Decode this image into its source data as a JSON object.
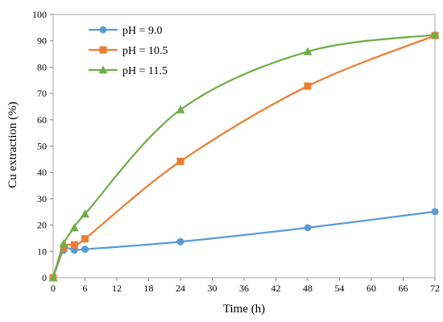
{
  "chart_data": {
    "type": "line",
    "xlabel": "Time (h)",
    "ylabel": "Cu extraction (%)",
    "xlim": [
      0,
      72
    ],
    "ylim": [
      0,
      100
    ],
    "xticks": [
      0,
      6,
      12,
      18,
      24,
      30,
      36,
      42,
      48,
      54,
      60,
      66,
      72
    ],
    "yticks": [
      0,
      10,
      20,
      30,
      40,
      50,
      60,
      70,
      80,
      90,
      100
    ],
    "grid": false,
    "legend_position": "top-left",
    "series": [
      {
        "name": "pH = 9.0",
        "color": "#5B9BD5",
        "marker": "circle",
        "x": [
          0,
          2,
          4,
          6,
          24,
          48,
          72
        ],
        "y": [
          0,
          10.5,
          10.5,
          10.8,
          13.7,
          19.0,
          25.1
        ]
      },
      {
        "name": "pH = 10.5",
        "color": "#ED7D31",
        "marker": "square",
        "x": [
          0,
          2,
          4,
          6,
          24,
          48,
          72
        ],
        "y": [
          0,
          11.5,
          12.5,
          14.8,
          44.2,
          72.8,
          92.0
        ]
      },
      {
        "name": "pH = 11.5",
        "color": "#70AD47",
        "marker": "triangle",
        "x": [
          0,
          2,
          4,
          6,
          24,
          48,
          72
        ],
        "y": [
          0,
          13.0,
          19.0,
          24.2,
          63.8,
          85.9,
          92.3
        ]
      }
    ]
  }
}
